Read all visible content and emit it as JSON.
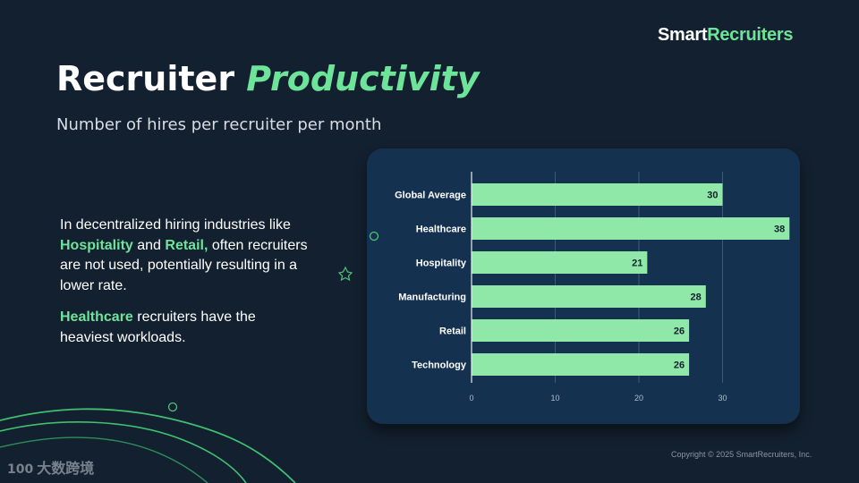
{
  "brand": {
    "part1": "Smart",
    "part2": "Recruiters"
  },
  "heading": {
    "plain": "Recruiter ",
    "accent": "Productivity"
  },
  "subtitle": "Number of hires per recruiter per month",
  "body": {
    "p1_a": "In decentralized hiring industries like ",
    "p1_hl1": "Hospitality",
    "p1_b": " and ",
    "p1_hl2": "Retail,",
    "p1_c": " often recruiters are not used, potentially resulting in a lower rate.",
    "p2_hl": "Healthcare",
    "p2_a": " recruiters have the heaviest workloads."
  },
  "copyright": "Copyright © 2025 SmartRecruiters, Inc.",
  "watermark": {
    "mark": "100",
    "text": "大数跨境"
  },
  "colors": {
    "accent": "#6ee49a",
    "bar": "#8fe8a8",
    "card": "#153150",
    "background": "#13202f"
  },
  "chart_data": {
    "type": "bar",
    "orientation": "horizontal",
    "categories": [
      "Global Average",
      "Healthcare",
      "Hospitality",
      "Manufacturing",
      "Retail",
      "Technology"
    ],
    "values": [
      30,
      38,
      21,
      28,
      26,
      26
    ],
    "xlim": [
      0,
      40
    ],
    "xticks": [
      0,
      10,
      20,
      30
    ],
    "grid": true,
    "data_labels": true
  }
}
